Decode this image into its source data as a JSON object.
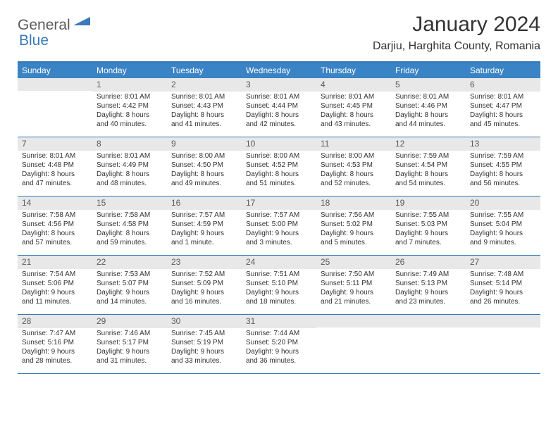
{
  "logo": {
    "text1": "General",
    "text2": "Blue"
  },
  "title": "January 2024",
  "location": "Darjiu, Harghita County, Romania",
  "header_bg": "#3a83c4",
  "border_color": "#3179b8",
  "daynum_bg": "#e8e8e8",
  "text_color": "#333333",
  "weekdays": [
    "Sunday",
    "Monday",
    "Tuesday",
    "Wednesday",
    "Thursday",
    "Friday",
    "Saturday"
  ],
  "weeks": [
    [
      null,
      {
        "n": "1",
        "rise": "8:01 AM",
        "set": "4:42 PM",
        "dl1": "8 hours",
        "dl2": "40 minutes."
      },
      {
        "n": "2",
        "rise": "8:01 AM",
        "set": "4:43 PM",
        "dl1": "8 hours",
        "dl2": "41 minutes."
      },
      {
        "n": "3",
        "rise": "8:01 AM",
        "set": "4:44 PM",
        "dl1": "8 hours",
        "dl2": "42 minutes."
      },
      {
        "n": "4",
        "rise": "8:01 AM",
        "set": "4:45 PM",
        "dl1": "8 hours",
        "dl2": "43 minutes."
      },
      {
        "n": "5",
        "rise": "8:01 AM",
        "set": "4:46 PM",
        "dl1": "8 hours",
        "dl2": "44 minutes."
      },
      {
        "n": "6",
        "rise": "8:01 AM",
        "set": "4:47 PM",
        "dl1": "8 hours",
        "dl2": "45 minutes."
      }
    ],
    [
      {
        "n": "7",
        "rise": "8:01 AM",
        "set": "4:48 PM",
        "dl1": "8 hours",
        "dl2": "47 minutes."
      },
      {
        "n": "8",
        "rise": "8:01 AM",
        "set": "4:49 PM",
        "dl1": "8 hours",
        "dl2": "48 minutes."
      },
      {
        "n": "9",
        "rise": "8:00 AM",
        "set": "4:50 PM",
        "dl1": "8 hours",
        "dl2": "49 minutes."
      },
      {
        "n": "10",
        "rise": "8:00 AM",
        "set": "4:52 PM",
        "dl1": "8 hours",
        "dl2": "51 minutes."
      },
      {
        "n": "11",
        "rise": "8:00 AM",
        "set": "4:53 PM",
        "dl1": "8 hours",
        "dl2": "52 minutes."
      },
      {
        "n": "12",
        "rise": "7:59 AM",
        "set": "4:54 PM",
        "dl1": "8 hours",
        "dl2": "54 minutes."
      },
      {
        "n": "13",
        "rise": "7:59 AM",
        "set": "4:55 PM",
        "dl1": "8 hours",
        "dl2": "56 minutes."
      }
    ],
    [
      {
        "n": "14",
        "rise": "7:58 AM",
        "set": "4:56 PM",
        "dl1": "8 hours",
        "dl2": "57 minutes."
      },
      {
        "n": "15",
        "rise": "7:58 AM",
        "set": "4:58 PM",
        "dl1": "8 hours",
        "dl2": "59 minutes."
      },
      {
        "n": "16",
        "rise": "7:57 AM",
        "set": "4:59 PM",
        "dl1": "9 hours",
        "dl2": "1 minute."
      },
      {
        "n": "17",
        "rise": "7:57 AM",
        "set": "5:00 PM",
        "dl1": "9 hours",
        "dl2": "3 minutes."
      },
      {
        "n": "18",
        "rise": "7:56 AM",
        "set": "5:02 PM",
        "dl1": "9 hours",
        "dl2": "5 minutes."
      },
      {
        "n": "19",
        "rise": "7:55 AM",
        "set": "5:03 PM",
        "dl1": "9 hours",
        "dl2": "7 minutes."
      },
      {
        "n": "20",
        "rise": "7:55 AM",
        "set": "5:04 PM",
        "dl1": "9 hours",
        "dl2": "9 minutes."
      }
    ],
    [
      {
        "n": "21",
        "rise": "7:54 AM",
        "set": "5:06 PM",
        "dl1": "9 hours",
        "dl2": "11 minutes."
      },
      {
        "n": "22",
        "rise": "7:53 AM",
        "set": "5:07 PM",
        "dl1": "9 hours",
        "dl2": "14 minutes."
      },
      {
        "n": "23",
        "rise": "7:52 AM",
        "set": "5:09 PM",
        "dl1": "9 hours",
        "dl2": "16 minutes."
      },
      {
        "n": "24",
        "rise": "7:51 AM",
        "set": "5:10 PM",
        "dl1": "9 hours",
        "dl2": "18 minutes."
      },
      {
        "n": "25",
        "rise": "7:50 AM",
        "set": "5:11 PM",
        "dl1": "9 hours",
        "dl2": "21 minutes."
      },
      {
        "n": "26",
        "rise": "7:49 AM",
        "set": "5:13 PM",
        "dl1": "9 hours",
        "dl2": "23 minutes."
      },
      {
        "n": "27",
        "rise": "7:48 AM",
        "set": "5:14 PM",
        "dl1": "9 hours",
        "dl2": "26 minutes."
      }
    ],
    [
      {
        "n": "28",
        "rise": "7:47 AM",
        "set": "5:16 PM",
        "dl1": "9 hours",
        "dl2": "28 minutes."
      },
      {
        "n": "29",
        "rise": "7:46 AM",
        "set": "5:17 PM",
        "dl1": "9 hours",
        "dl2": "31 minutes."
      },
      {
        "n": "30",
        "rise": "7:45 AM",
        "set": "5:19 PM",
        "dl1": "9 hours",
        "dl2": "33 minutes."
      },
      {
        "n": "31",
        "rise": "7:44 AM",
        "set": "5:20 PM",
        "dl1": "9 hours",
        "dl2": "36 minutes."
      },
      null,
      null,
      null
    ]
  ],
  "labels": {
    "sunrise": "Sunrise:",
    "sunset": "Sunset:",
    "daylight": "Daylight:",
    "and": "and"
  }
}
